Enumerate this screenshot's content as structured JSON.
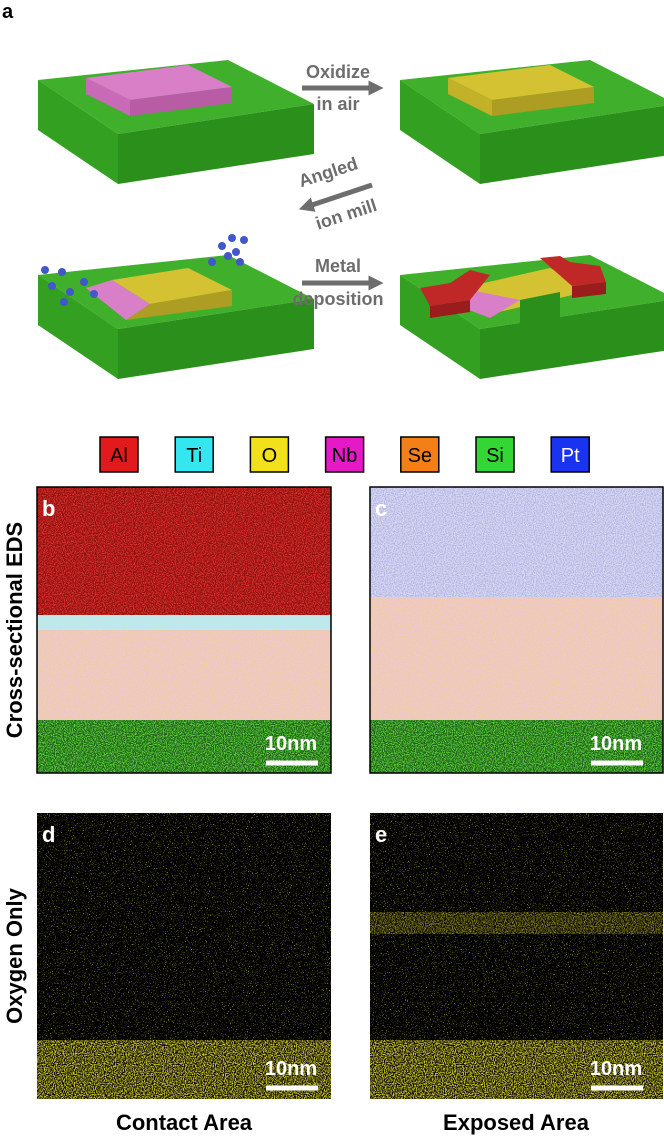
{
  "panel_a": {
    "label": "a",
    "steps": [
      {
        "lines": [
          "Oxidize",
          "in air"
        ]
      },
      {
        "lines": [
          "Angled",
          "ion mill"
        ]
      },
      {
        "lines": [
          "Metal",
          "deposition"
        ]
      }
    ]
  },
  "legend": [
    {
      "name": "Al",
      "color": "#e31a1c"
    },
    {
      "name": "Ti",
      "color": "#33e6f0"
    },
    {
      "name": "O",
      "color": "#f2e01a"
    },
    {
      "name": "Nb",
      "color": "#e619c8"
    },
    {
      "name": "Se",
      "color": "#f57f17"
    },
    {
      "name": "Si",
      "color": "#33d633"
    },
    {
      "name": "Pt",
      "color": "#1a33f0"
    }
  ],
  "panels": [
    {
      "label": "b",
      "scale_bar": "10nm"
    },
    {
      "label": "c",
      "scale_bar": "10nm"
    },
    {
      "label": "d",
      "scale_bar": "10nm"
    },
    {
      "label": "e",
      "scale_bar": "10nm"
    }
  ],
  "row_labels": [
    "Cross-sectional EDS",
    "Oxygen Only"
  ],
  "column_labels": [
    "Contact Area",
    "Exposed Area"
  ]
}
